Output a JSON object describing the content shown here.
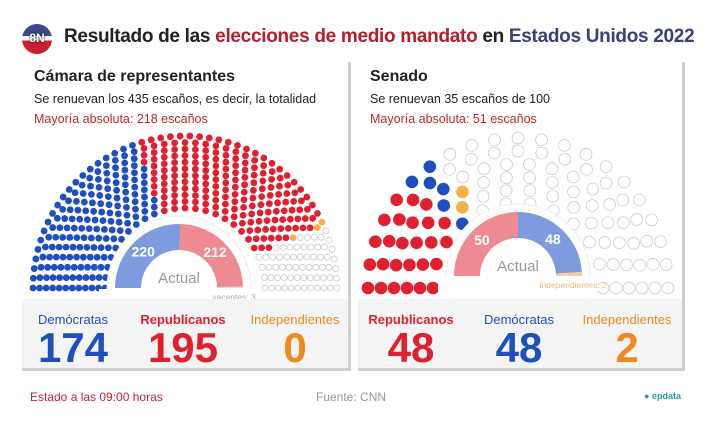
{
  "header": {
    "logo_text": "8N",
    "title_a": "Resultado de las ",
    "title_b": "elecciones de medio mandato",
    "title_c": " en ",
    "title_d": "Estados Unidos 2022"
  },
  "house": {
    "title": "Cámara de representantes",
    "subtitle": "Se renuevan los 435 escaños, es decir, la totalidad",
    "majority": "Mayoría absoluta: 218 escaños",
    "gauge": {
      "label": "Actual",
      "dem": 220,
      "rep": 212,
      "note": "vacantes: 3"
    },
    "totals": [
      {
        "party": "Demócratas",
        "value": "174",
        "color": "#1f4fbf"
      },
      {
        "party": "Republicanos",
        "value": "195",
        "color": "#e0202f"
      },
      {
        "party": "Independientes",
        "value": "0",
        "color": "#f0891e"
      }
    ],
    "seats": {
      "total": 435,
      "dem": 174,
      "rep": 195,
      "pending": 3
    }
  },
  "senate": {
    "title": "Senado",
    "subtitle": "Se renuevan 35 escaños de 100",
    "majority": "Mayoría absoluta: 51 escaños",
    "gauge": {
      "label": "Actual",
      "rep": 50,
      "dem": 48,
      "note": "Independientes: 2"
    },
    "totals": [
      {
        "party": "Republicanos",
        "value": "48",
        "color": "#e0202f"
      },
      {
        "party": "Demócratas",
        "value": "48",
        "color": "#1f4fbf"
      },
      {
        "party": "Independientes",
        "value": "2",
        "color": "#f0891e"
      }
    ],
    "seats": {
      "total": 100,
      "rep": 26,
      "dem": 6,
      "pending": 2
    }
  },
  "footer": {
    "status": "Estado a las 09:00 horas",
    "source": "Fuente: CNN",
    "brand": "epdata"
  },
  "colors": {
    "dem": "#1f4fbf",
    "rep": "#e0202f",
    "ind": "#f0891e",
    "gauge_dem": "#7e9be0",
    "gauge_rep": "#ee8a92"
  }
}
